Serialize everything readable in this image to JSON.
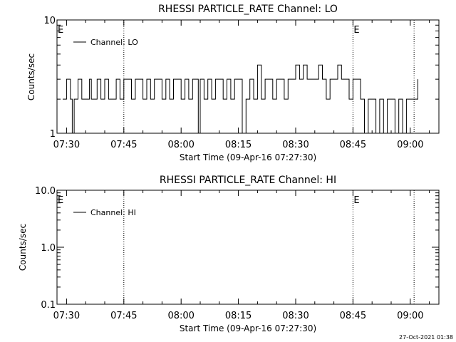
{
  "footer": {
    "timestamp": "27-Oct-2021 01:38"
  },
  "chart_data": [
    {
      "type": "line",
      "title": "RHESSI PARTICLE_RATE Channel: LO",
      "xlabel": "Start Time (09-Apr-16 07:27:30)",
      "ylabel": "Counts/sec",
      "y_scale": "log",
      "ylim": [
        1,
        10
      ],
      "y_ticks": [
        "1",
        "10"
      ],
      "xlim": [
        "07:27:30",
        "09:07:30"
      ],
      "x_ticks": [
        "07:30",
        "07:45",
        "08:00",
        "08:15",
        "08:30",
        "08:45",
        "09:00"
      ],
      "legend": {
        "position": "top-left",
        "entries": [
          "Channel: LO"
        ]
      },
      "markers": [
        {
          "time": "07:27:30",
          "label": "E"
        },
        {
          "time": "07:45",
          "label": ""
        },
        {
          "time": "08:45",
          "label": "E"
        },
        {
          "time": "09:01",
          "label": ""
        }
      ],
      "series": [
        {
          "name": "Channel: LO",
          "x": [
            "07:29:00",
            "07:30:00",
            "07:31:00",
            "07:31:30",
            "07:32:00",
            "07:33:00",
            "07:34:00",
            "07:35:00",
            "07:36:00",
            "07:36:30",
            "07:37:00",
            "07:38:00",
            "07:39:00",
            "07:40:00",
            "07:41:00",
            "07:42:00",
            "07:43:00",
            "07:44:00",
            "07:45:00",
            "07:46:00",
            "07:47:00",
            "07:48:00",
            "07:49:00",
            "07:50:00",
            "07:51:00",
            "07:52:00",
            "07:53:00",
            "07:54:00",
            "07:55:00",
            "07:56:00",
            "07:57:00",
            "07:58:00",
            "07:59:00",
            "08:00:00",
            "08:01:00",
            "08:02:00",
            "08:03:00",
            "08:04:00",
            "08:04:30",
            "08:05:00",
            "08:06:00",
            "08:07:00",
            "08:08:00",
            "08:09:00",
            "08:10:00",
            "08:11:00",
            "08:12:00",
            "08:13:00",
            "08:14:00",
            "08:15:00",
            "08:16:00",
            "08:17:00",
            "08:18:00",
            "08:19:00",
            "08:20:00",
            "08:21:00",
            "08:22:00",
            "08:23:00",
            "08:24:00",
            "08:25:00",
            "08:26:00",
            "08:27:00",
            "08:28:00",
            "08:29:00",
            "08:30:00",
            "08:31:00",
            "08:32:00",
            "08:33:00",
            "08:34:00",
            "08:35:00",
            "08:36:00",
            "08:37:00",
            "08:38:00",
            "08:39:00",
            "08:40:00",
            "08:41:00",
            "08:42:00",
            "08:43:00",
            "08:44:00",
            "08:45:00",
            "08:46:00",
            "08:47:00",
            "08:48:00",
            "08:49:00",
            "08:50:00",
            "08:51:00",
            "08:52:00",
            "08:53:00",
            "08:54:00",
            "08:55:00",
            "08:56:00",
            "08:57:00",
            "08:58:00",
            "08:59:00",
            "09:00:00",
            "09:01:00",
            "09:02:00"
          ],
          "values": [
            2,
            3,
            2,
            1,
            2,
            3,
            2,
            2,
            3,
            2,
            2,
            3,
            2,
            3,
            2,
            2,
            3,
            2,
            3,
            3,
            2,
            3,
            3,
            2,
            3,
            2,
            3,
            3,
            2,
            3,
            2,
            3,
            3,
            2,
            3,
            2,
            3,
            3,
            1,
            3,
            2,
            3,
            2,
            3,
            3,
            2,
            3,
            2,
            3,
            3,
            1,
            2,
            3,
            2,
            4,
            2,
            3,
            3,
            2,
            3,
            3,
            2,
            3,
            3,
            4,
            3,
            4,
            3,
            3,
            3,
            4,
            3,
            2,
            3,
            3,
            4,
            3,
            3,
            2,
            3,
            3,
            2,
            1,
            2,
            2,
            1,
            2,
            1,
            2,
            2,
            1,
            2,
            1,
            2,
            2,
            2,
            3
          ]
        }
      ]
    },
    {
      "type": "line",
      "title": "RHESSI PARTICLE_RATE Channel: HI",
      "xlabel": "Start Time (09-Apr-16 07:27:30)",
      "ylabel": "Counts/sec",
      "y_scale": "log",
      "ylim": [
        0.1,
        10
      ],
      "y_ticks": [
        "0.1",
        "1.0",
        "10.0"
      ],
      "xlim": [
        "07:27:30",
        "09:07:30"
      ],
      "x_ticks": [
        "07:30",
        "07:45",
        "08:00",
        "08:15",
        "08:30",
        "08:45",
        "09:00"
      ],
      "legend": {
        "position": "top-left",
        "entries": [
          "Channel: HI"
        ]
      },
      "markers": [
        {
          "time": "07:27:30",
          "label": "E"
        },
        {
          "time": "07:45",
          "label": ""
        },
        {
          "time": "08:45",
          "label": "E"
        },
        {
          "time": "09:01",
          "label": ""
        }
      ],
      "series": [
        {
          "name": "Channel: HI",
          "x": [],
          "values": []
        }
      ]
    }
  ]
}
